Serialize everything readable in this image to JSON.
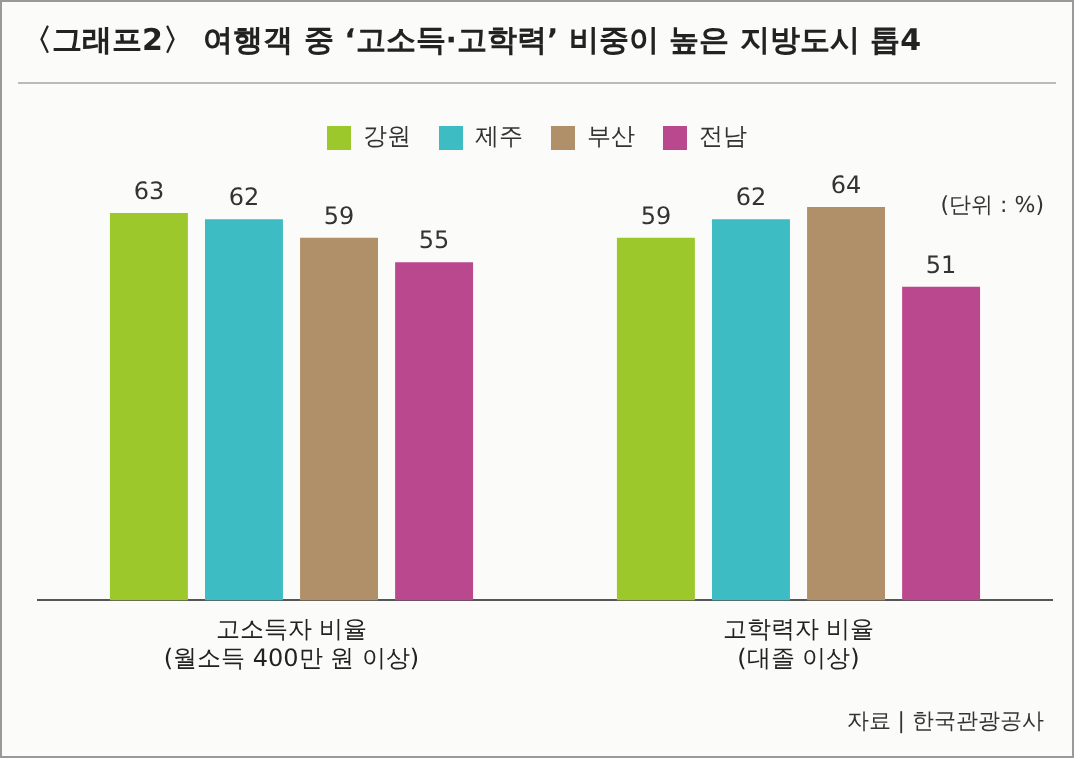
{
  "chart_data": {
    "type": "bar",
    "title": "〈그래프2〉 여행객 중 ‘고소득·고학력’ 비중이 높은 지방도시 톱4",
    "categories": [
      "고소득자 비율\n(월소득 400만 원 이상)",
      "고학력자 비율\n(대졸 이상)"
    ],
    "series": [
      {
        "name": "강원",
        "color": "#9dc82c",
        "values": [
          63,
          59
        ]
      },
      {
        "name": "제주",
        "color": "#3dbcc4",
        "values": [
          62,
          62
        ]
      },
      {
        "name": "부산",
        "color": "#b09068",
        "values": [
          59,
          64
        ]
      },
      {
        "name": "전남",
        "color": "#b9488e",
        "values": [
          55,
          51
        ]
      }
    ],
    "tick_labels": "x",
    "grid": false,
    "legend": "top",
    "data_labels": true,
    "annotations": [
      "(단위 : %)",
      "자료 | 한국관광공사"
    ]
  }
}
